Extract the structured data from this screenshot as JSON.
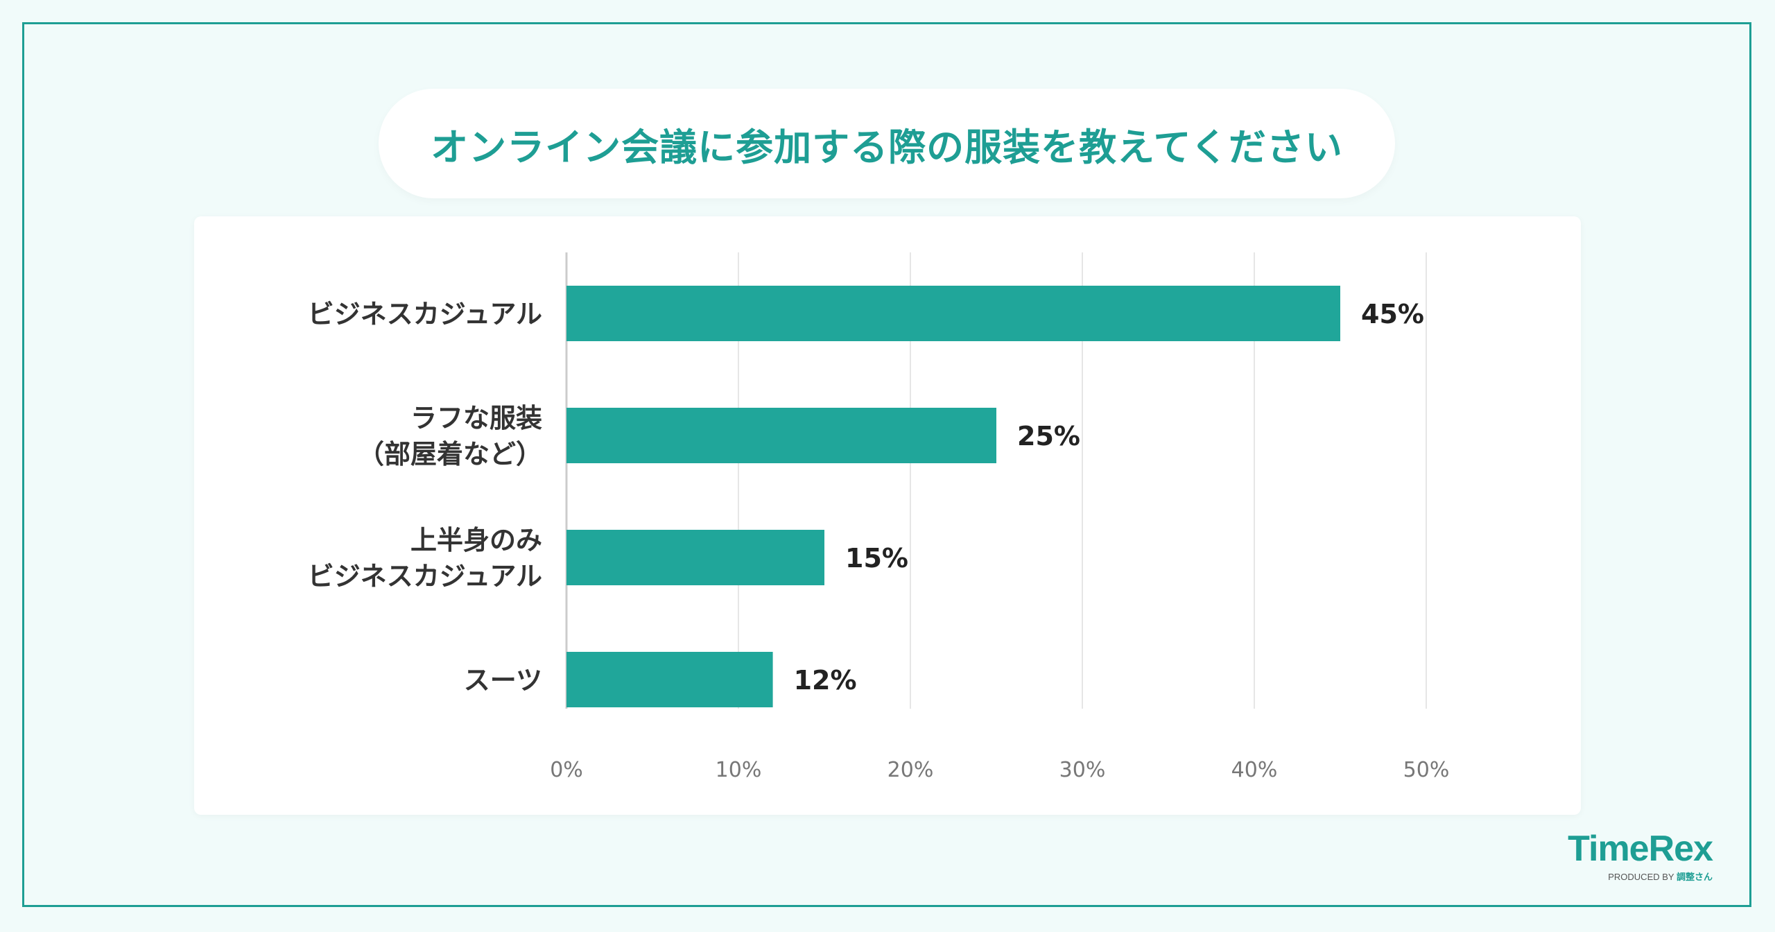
{
  "colors": {
    "accent": "#1e9e94",
    "bar": "#20a69a",
    "background": "#f1fbfa",
    "grid": "#e6e6e6"
  },
  "chart_data": {
    "type": "bar",
    "orientation": "horizontal",
    "title": "オンライン会議に参加する際の服装を教えてください",
    "categories": [
      [
        "ビジネスカジュアル"
      ],
      [
        "ラフな服装",
        "（部屋着など）"
      ],
      [
        "上半身のみ",
        "ビジネスカジュアル"
      ],
      [
        "スーツ"
      ]
    ],
    "values": [
      45,
      25,
      15,
      12
    ],
    "value_labels": [
      "45%",
      "25%",
      "15%",
      "12%"
    ],
    "xlim": [
      0,
      50
    ],
    "x_ticks": [
      0,
      10,
      20,
      30,
      40,
      50
    ],
    "x_tick_labels": [
      "0%",
      "10%",
      "20%",
      "30%",
      "40%",
      "50%"
    ],
    "grid": true,
    "xlabel": "",
    "ylabel": ""
  },
  "logo": {
    "name": "TimeRex",
    "sub_prefix": "PRODUCED BY",
    "sub_brand": "調整さん"
  }
}
